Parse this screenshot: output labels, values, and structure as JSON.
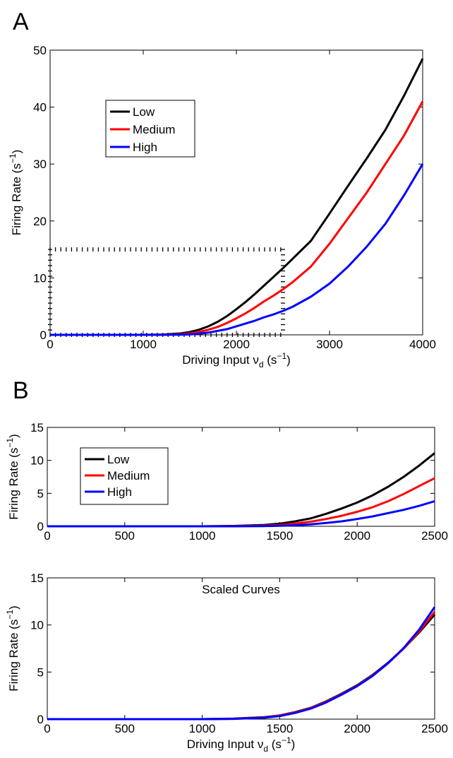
{
  "figure": {
    "panel_a_letter": "A",
    "panel_b_letter": "B"
  },
  "colors": {
    "low": "#000000",
    "medium": "#ff0000",
    "high": "#0000ff",
    "reference_box": "#000000"
  },
  "chart_data": [
    {
      "panel": "A",
      "type": "line",
      "title": "",
      "xlabel": "Driving Input ν_d (s^-1)",
      "ylabel": "Firing Rate (s^-1)",
      "xlim": [
        0,
        4000
      ],
      "ylim": [
        0,
        50
      ],
      "xticks": [
        0,
        1000,
        2000,
        3000,
        4000
      ],
      "yticks": [
        0,
        10,
        20,
        30,
        40,
        50
      ],
      "grid": false,
      "legend_position": "upper-left",
      "reference_box": {
        "x": [
          0,
          2500
        ],
        "y": [
          0,
          15
        ],
        "style": "dashed-ticks"
      },
      "x": [
        0,
        500,
        1000,
        1200,
        1400,
        1500,
        1600,
        1700,
        1800,
        1900,
        2000,
        2100,
        2200,
        2300,
        2400,
        2500,
        2600,
        2800,
        3000,
        3200,
        3400,
        3600,
        3800,
        4000
      ],
      "series": [
        {
          "name": "Low",
          "color": "#000000",
          "values": [
            0,
            0,
            0,
            0.05,
            0.25,
            0.5,
            0.9,
            1.5,
            2.3,
            3.3,
            4.5,
            5.8,
            7.2,
            8.7,
            10.2,
            11.7,
            13.3,
            16.5,
            21.3,
            26.2,
            31.0,
            36.0,
            42.0,
            48.5
          ]
        },
        {
          "name": "Medium",
          "color": "#ff0000",
          "values": [
            0,
            0,
            0,
            0.02,
            0.1,
            0.25,
            0.5,
            0.9,
            1.4,
            2.1,
            2.9,
            3.8,
            4.8,
            5.9,
            6.9,
            8.0,
            9.2,
            12.0,
            16.0,
            20.5,
            25.0,
            30.0,
            35.0,
            41.0
          ]
        },
        {
          "name": "High",
          "color": "#0000ff",
          "values": [
            0,
            0,
            0,
            0,
            0.03,
            0.08,
            0.2,
            0.4,
            0.7,
            1.0,
            1.5,
            2.0,
            2.5,
            3.1,
            3.6,
            4.2,
            4.9,
            6.7,
            9.0,
            12.0,
            15.5,
            19.5,
            24.5,
            30.0
          ]
        }
      ]
    },
    {
      "panel": "B-top",
      "type": "line",
      "title": "",
      "xlabel": "",
      "ylabel": "Firing Rate (s^-1)",
      "xlim": [
        0,
        2500
      ],
      "ylim": [
        0,
        15
      ],
      "xticks": [
        0,
        500,
        1000,
        1500,
        2000,
        2500
      ],
      "yticks": [
        0,
        5,
        10,
        15
      ],
      "grid": false,
      "legend_position": "upper-left",
      "x": [
        0,
        500,
        1000,
        1200,
        1400,
        1500,
        1600,
        1700,
        1800,
        1900,
        2000,
        2100,
        2200,
        2300,
        2400,
        2500
      ],
      "series": [
        {
          "name": "Low",
          "color": "#000000",
          "values": [
            0,
            0,
            0,
            0.05,
            0.2,
            0.4,
            0.75,
            1.2,
            1.9,
            2.7,
            3.6,
            4.7,
            6.0,
            7.5,
            9.2,
            11.1
          ]
        },
        {
          "name": "Medium",
          "color": "#ff0000",
          "values": [
            0,
            0,
            0,
            0.02,
            0.1,
            0.2,
            0.4,
            0.7,
            1.1,
            1.6,
            2.2,
            2.9,
            3.8,
            4.9,
            6.1,
            7.3
          ]
        },
        {
          "name": "High",
          "color": "#0000ff",
          "values": [
            0,
            0,
            0,
            0,
            0.03,
            0.07,
            0.15,
            0.3,
            0.5,
            0.75,
            1.1,
            1.5,
            2.0,
            2.5,
            3.1,
            3.8
          ]
        }
      ]
    },
    {
      "panel": "B-bottom",
      "type": "line",
      "title": "Scaled Curves",
      "xlabel": "Driving Input ν_d (s^-1)",
      "ylabel": "Firing Rate (s^-1)",
      "xlim": [
        0,
        2500
      ],
      "ylim": [
        0,
        15
      ],
      "xticks": [
        0,
        500,
        1000,
        1500,
        2000,
        2500
      ],
      "yticks": [
        0,
        5,
        10,
        15
      ],
      "grid": false,
      "legend_position": "none",
      "x": [
        0,
        500,
        1000,
        1200,
        1400,
        1500,
        1600,
        1700,
        1800,
        1900,
        2000,
        2100,
        2200,
        2300,
        2400,
        2500
      ],
      "series": [
        {
          "name": "Low",
          "color": "#000000",
          "values": [
            0,
            0,
            0,
            0.05,
            0.2,
            0.4,
            0.75,
            1.2,
            1.9,
            2.7,
            3.6,
            4.7,
            6.0,
            7.5,
            9.2,
            11.1
          ]
        },
        {
          "name": "Medium",
          "color": "#ff0000",
          "values": [
            0,
            0,
            0,
            0.04,
            0.18,
            0.38,
            0.72,
            1.18,
            1.85,
            2.65,
            3.55,
            4.65,
            5.95,
            7.5,
            9.3,
            11.4
          ]
        },
        {
          "name": "High",
          "color": "#0000ff",
          "values": [
            0,
            0,
            0,
            0.03,
            0.15,
            0.33,
            0.66,
            1.12,
            1.78,
            2.6,
            3.5,
            4.6,
            5.95,
            7.55,
            9.5,
            11.9
          ]
        }
      ]
    }
  ]
}
